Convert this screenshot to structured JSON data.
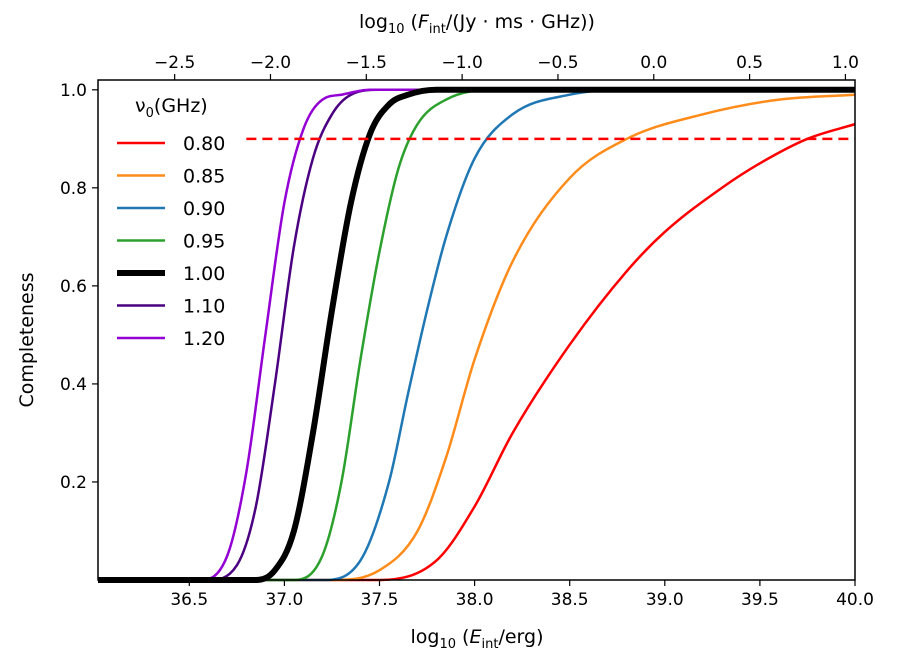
{
  "chart_data": {
    "type": "line",
    "xlabel": {
      "prefix": "log",
      "sub": "10",
      "open": " (",
      "var": "E",
      "varsub": "int",
      "rest": "/erg)"
    },
    "x2label": {
      "prefix": "log",
      "sub": "10",
      "open": " (",
      "var": "F",
      "varsub": "int",
      "rest": "/(Jy · ms · GHz))"
    },
    "ylabel": "Completeness",
    "xlim": [
      36.02,
      40.0
    ],
    "ylim": [
      0.0,
      1.02
    ],
    "x2lim": [
      -2.9,
      1.05
    ],
    "xticks": [
      36.5,
      37.0,
      37.5,
      38.0,
      38.5,
      39.0,
      39.5,
      40.0
    ],
    "xtick_labels": [
      "36.5",
      "37.0",
      "37.5",
      "38.0",
      "38.5",
      "39.0",
      "39.5",
      "40.0"
    ],
    "x2ticks": [
      -2.5,
      -2.0,
      -1.5,
      -1.0,
      -0.5,
      0.0,
      0.5,
      1.0
    ],
    "x2tick_labels": [
      "−2.5",
      "−2.0",
      "−1.5",
      "−1.0",
      "−0.5",
      "0.0",
      "0.5",
      "1.0"
    ],
    "yticks": [
      0.2,
      0.4,
      0.6,
      0.8,
      1.0
    ],
    "ytick_labels": [
      "0.2",
      "0.4",
      "0.6",
      "0.8",
      "1.0"
    ],
    "legend": {
      "title_var": "ν",
      "title_sub": "0",
      "title_rest": "(GHz)",
      "position": "upper-left"
    },
    "threshold": {
      "y": 0.9,
      "x_start": 36.8,
      "color": "#ff0000",
      "style": "dashed"
    },
    "series": [
      {
        "name": "0.80",
        "color": "#ff0000",
        "width": 2.5,
        "x": [
          36.02,
          37.5,
          37.8,
          38.0,
          38.2,
          38.5,
          38.8,
          39.0,
          39.3,
          39.5,
          39.75,
          40.0
        ],
        "y": [
          0.0,
          0.0,
          0.04,
          0.15,
          0.3,
          0.48,
          0.63,
          0.71,
          0.8,
          0.85,
          0.9,
          0.93
        ]
      },
      {
        "name": "0.85",
        "color": "#ff8c1a",
        "width": 2.5,
        "x": [
          36.02,
          37.25,
          37.5,
          37.7,
          37.85,
          38.0,
          38.2,
          38.5,
          38.8,
          39.2,
          39.6,
          40.0
        ],
        "y": [
          0.0,
          0.0,
          0.02,
          0.1,
          0.25,
          0.45,
          0.65,
          0.82,
          0.9,
          0.95,
          0.98,
          0.99
        ]
      },
      {
        "name": "0.90",
        "color": "#1f77b4",
        "width": 2.5,
        "x": [
          36.02,
          37.2,
          37.4,
          37.55,
          37.65,
          37.75,
          37.85,
          38.0,
          38.2,
          38.5,
          38.8,
          40.0
        ],
        "y": [
          0.0,
          0.0,
          0.04,
          0.2,
          0.38,
          0.55,
          0.7,
          0.86,
          0.95,
          0.99,
          1.0,
          1.0
        ]
      },
      {
        "name": "0.95",
        "color": "#2ca02c",
        "width": 2.5,
        "x": [
          36.02,
          37.05,
          37.2,
          37.3,
          37.4,
          37.5,
          37.6,
          37.7,
          37.85,
          38.1,
          40.0
        ],
        "y": [
          0.0,
          0.0,
          0.05,
          0.2,
          0.45,
          0.67,
          0.84,
          0.93,
          0.98,
          1.0,
          1.0
        ]
      },
      {
        "name": "1.00",
        "color": "#000000",
        "width": 6,
        "x": [
          36.02,
          36.85,
          36.95,
          37.05,
          37.15,
          37.25,
          37.35,
          37.45,
          37.55,
          37.65,
          37.8,
          40.0
        ],
        "y": [
          0.0,
          0.0,
          0.02,
          0.1,
          0.3,
          0.55,
          0.77,
          0.91,
          0.97,
          0.99,
          1.0,
          1.0
        ]
      },
      {
        "name": "1.10",
        "color": "#4b0082",
        "width": 2.5,
        "x": [
          36.02,
          36.6,
          36.75,
          36.85,
          36.95,
          37.05,
          37.15,
          37.25,
          37.35,
          37.5,
          40.0
        ],
        "y": [
          0.0,
          0.0,
          0.03,
          0.15,
          0.4,
          0.68,
          0.86,
          0.95,
          0.99,
          1.0,
          1.0
        ]
      },
      {
        "name": "1.20",
        "color": "#9400d3",
        "width": 2.5,
        "x": [
          36.02,
          36.55,
          36.7,
          36.8,
          36.9,
          37.0,
          37.1,
          37.2,
          37.3,
          37.45,
          40.0
        ],
        "y": [
          0.0,
          0.0,
          0.05,
          0.22,
          0.5,
          0.77,
          0.92,
          0.98,
          0.99,
          1.0,
          1.0
        ]
      }
    ]
  }
}
